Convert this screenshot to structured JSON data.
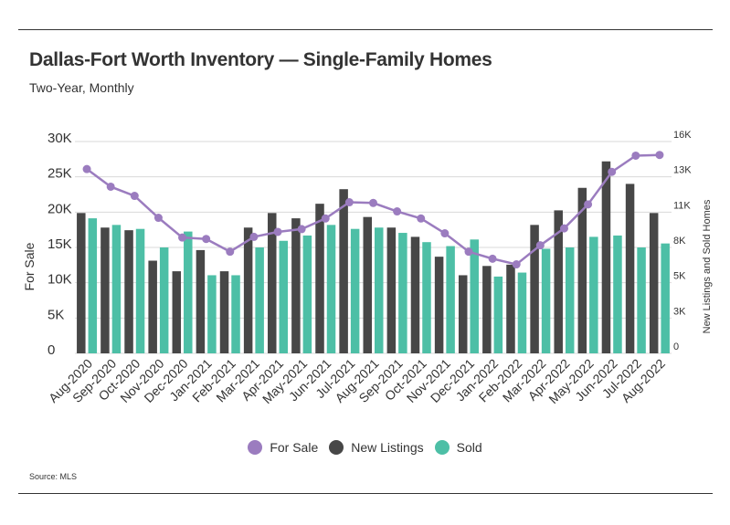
{
  "header": {
    "title": "Dallas-Fort Worth Inventory — Single-Family Homes",
    "subtitle": "Two-Year, Monthly"
  },
  "footer": {
    "source": "Source:  MLS"
  },
  "colors": {
    "for_sale": "#9b7cbf",
    "new_listings": "#474747",
    "sold": "#4dbfa6",
    "grid": "#d9d9d9",
    "text": "#333333"
  },
  "legend": [
    {
      "label": "For Sale",
      "color": "#9b7cbf"
    },
    {
      "label": "New Listings",
      "color": "#474747"
    },
    {
      "label": "Sold",
      "color": "#4dbfa6"
    }
  ],
  "chart_data": {
    "type": "bar",
    "title": "Dallas-Fort Worth Inventory — Single-Family Homes",
    "subtitle": "Two-Year, Monthly",
    "categories": [
      "Aug-2020",
      "Sep-2020",
      "Oct-2020",
      "Nov-2020",
      "Dec-2020",
      "Jan-2021",
      "Feb-2021",
      "Mar-2021",
      "Apr-2021",
      "May-2021",
      "Jun-2021",
      "Jul-2021",
      "Aug-2021",
      "Sep-2021",
      "Oct-2021",
      "Nov-2021",
      "Dec-2021",
      "Jan-2022",
      "Feb-2022",
      "Mar-2022",
      "Apr-2022",
      "May-2022",
      "Jun-2022",
      "Jul-2022",
      "Aug-2022"
    ],
    "ylabel_left": "For Sale",
    "ylabel_right": "New Listings and Sold Homes",
    "yticks_left": [
      "0",
      "5K",
      "10K",
      "15K",
      "20K",
      "25K",
      "30K"
    ],
    "yticks_right": [
      "0",
      "3K",
      "5K",
      "8K",
      "11K",
      "13K",
      "16K"
    ],
    "ylim_left": [
      0,
      30000
    ],
    "ylim_right": [
      0,
      16000
    ],
    "grid": true,
    "legend_position": "bottom",
    "series": [
      {
        "name": "New Listings",
        "type": "bar",
        "axis": "right",
        "values": [
          10600,
          9500,
          9300,
          7000,
          6200,
          7800,
          6200,
          9500,
          10600,
          10200,
          11300,
          12400,
          10300,
          9500,
          8800,
          7300,
          5900,
          6600,
          6700,
          9700,
          10800,
          12500,
          14500,
          12800,
          10600
        ]
      },
      {
        "name": "Sold",
        "type": "bar",
        "axis": "right",
        "values": [
          10200,
          9700,
          9400,
          8000,
          9200,
          5900,
          5900,
          8000,
          8500,
          8900,
          9700,
          9400,
          9500,
          9100,
          8400,
          8100,
          8600,
          5800,
          6100,
          7900,
          8000,
          8800,
          8900,
          8000,
          8300
        ]
      },
      {
        "name": "For Sale",
        "type": "line",
        "axis": "left",
        "values": [
          26100,
          23600,
          22300,
          19200,
          16400,
          16200,
          14400,
          16500,
          17200,
          17600,
          19100,
          21400,
          21300,
          20100,
          19100,
          17000,
          14400,
          13400,
          12600,
          15300,
          17700,
          21100,
          25700,
          28000,
          28100
        ]
      }
    ]
  }
}
